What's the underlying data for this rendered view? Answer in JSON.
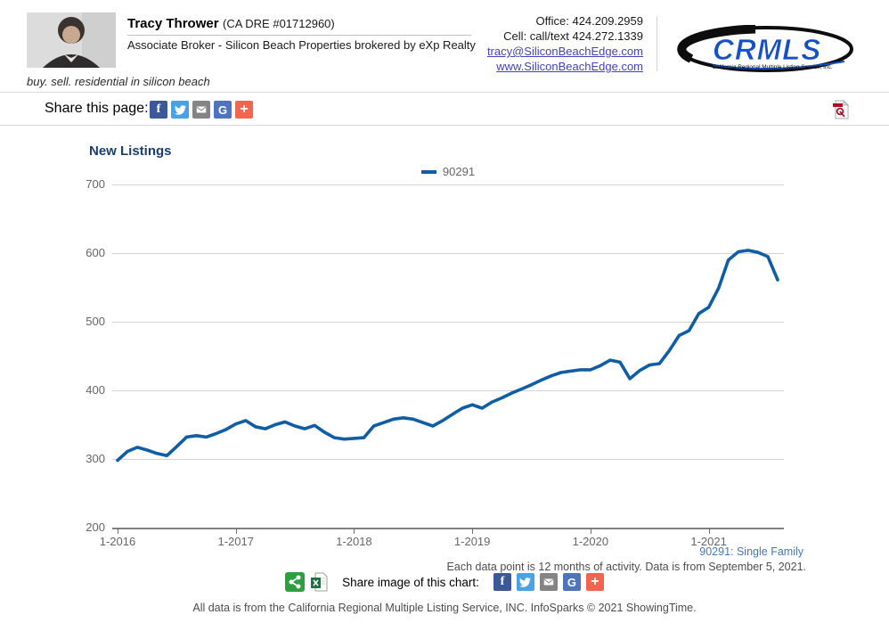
{
  "header": {
    "agent_name": "Tracy Thrower",
    "license": "(CA DRE #01712960)",
    "title_line": "Associate Broker - Silicon Beach Properties brokered by eXp Realty",
    "tagline": "buy. sell. residential in silicon beach",
    "office_phone": "Office: 424.209.2959",
    "cell_phone": "Cell: call/text 424.272.1339",
    "email_link": "tracy@SiliconBeachEdge.com",
    "website_link": "www.SiliconBeachEdge.com",
    "logo_text": "CRMLS",
    "logo_caption": "California Regional Multiple Listing Service, Inc."
  },
  "share_bar": {
    "label": "Share this page:",
    "icons": [
      "facebook",
      "twitter",
      "email",
      "google",
      "addtoany-plus"
    ],
    "icon_glyphs": {
      "facebook": "f",
      "google": "G",
      "plus": "+"
    },
    "pdf_icon": "pdf-download"
  },
  "chart_data": {
    "type": "line",
    "title": "New Listings",
    "series": [
      {
        "name": "90291",
        "label": "90291: Single Family",
        "color": "#0e5da5",
        "values": [
          298,
          311,
          317,
          313,
          308,
          305,
          318,
          332,
          334,
          332,
          337,
          343,
          351,
          356,
          347,
          344,
          350,
          354,
          348,
          344,
          349,
          339,
          331,
          329,
          330,
          331,
          348,
          353,
          358,
          360,
          358,
          353,
          348,
          356,
          365,
          374,
          379,
          374,
          383,
          389,
          396,
          402,
          408,
          415,
          421,
          426,
          428,
          430,
          430,
          436,
          444,
          441,
          417,
          429,
          437,
          439,
          458,
          480,
          487,
          512,
          521,
          549,
          590,
          602,
          604,
          601,
          595,
          561
        ]
      }
    ],
    "x_monthly_start": "1-2016",
    "x_monthly_end": "8-2021",
    "x_tick_labels": [
      "1-2016",
      "1-2017",
      "1-2018",
      "1-2019",
      "1-2020",
      "1-2021"
    ],
    "y_ticks": [
      700,
      600,
      500,
      400,
      300,
      200
    ],
    "ylim": [
      200,
      700
    ],
    "grid": "horizontal",
    "legend_position": "top-center",
    "note": "Each data point is 12 months of activity. Data is from September 5, 2021."
  },
  "image_share": {
    "label": "Share image of this chart:",
    "icons": [
      "share",
      "excel-download",
      "facebook",
      "twitter",
      "email",
      "google",
      "addtoany-plus"
    ]
  },
  "footer": {
    "text": "All data is from the California Regional Multiple Listing Service, INC. InfoSparks © 2021 ShowingTime."
  }
}
